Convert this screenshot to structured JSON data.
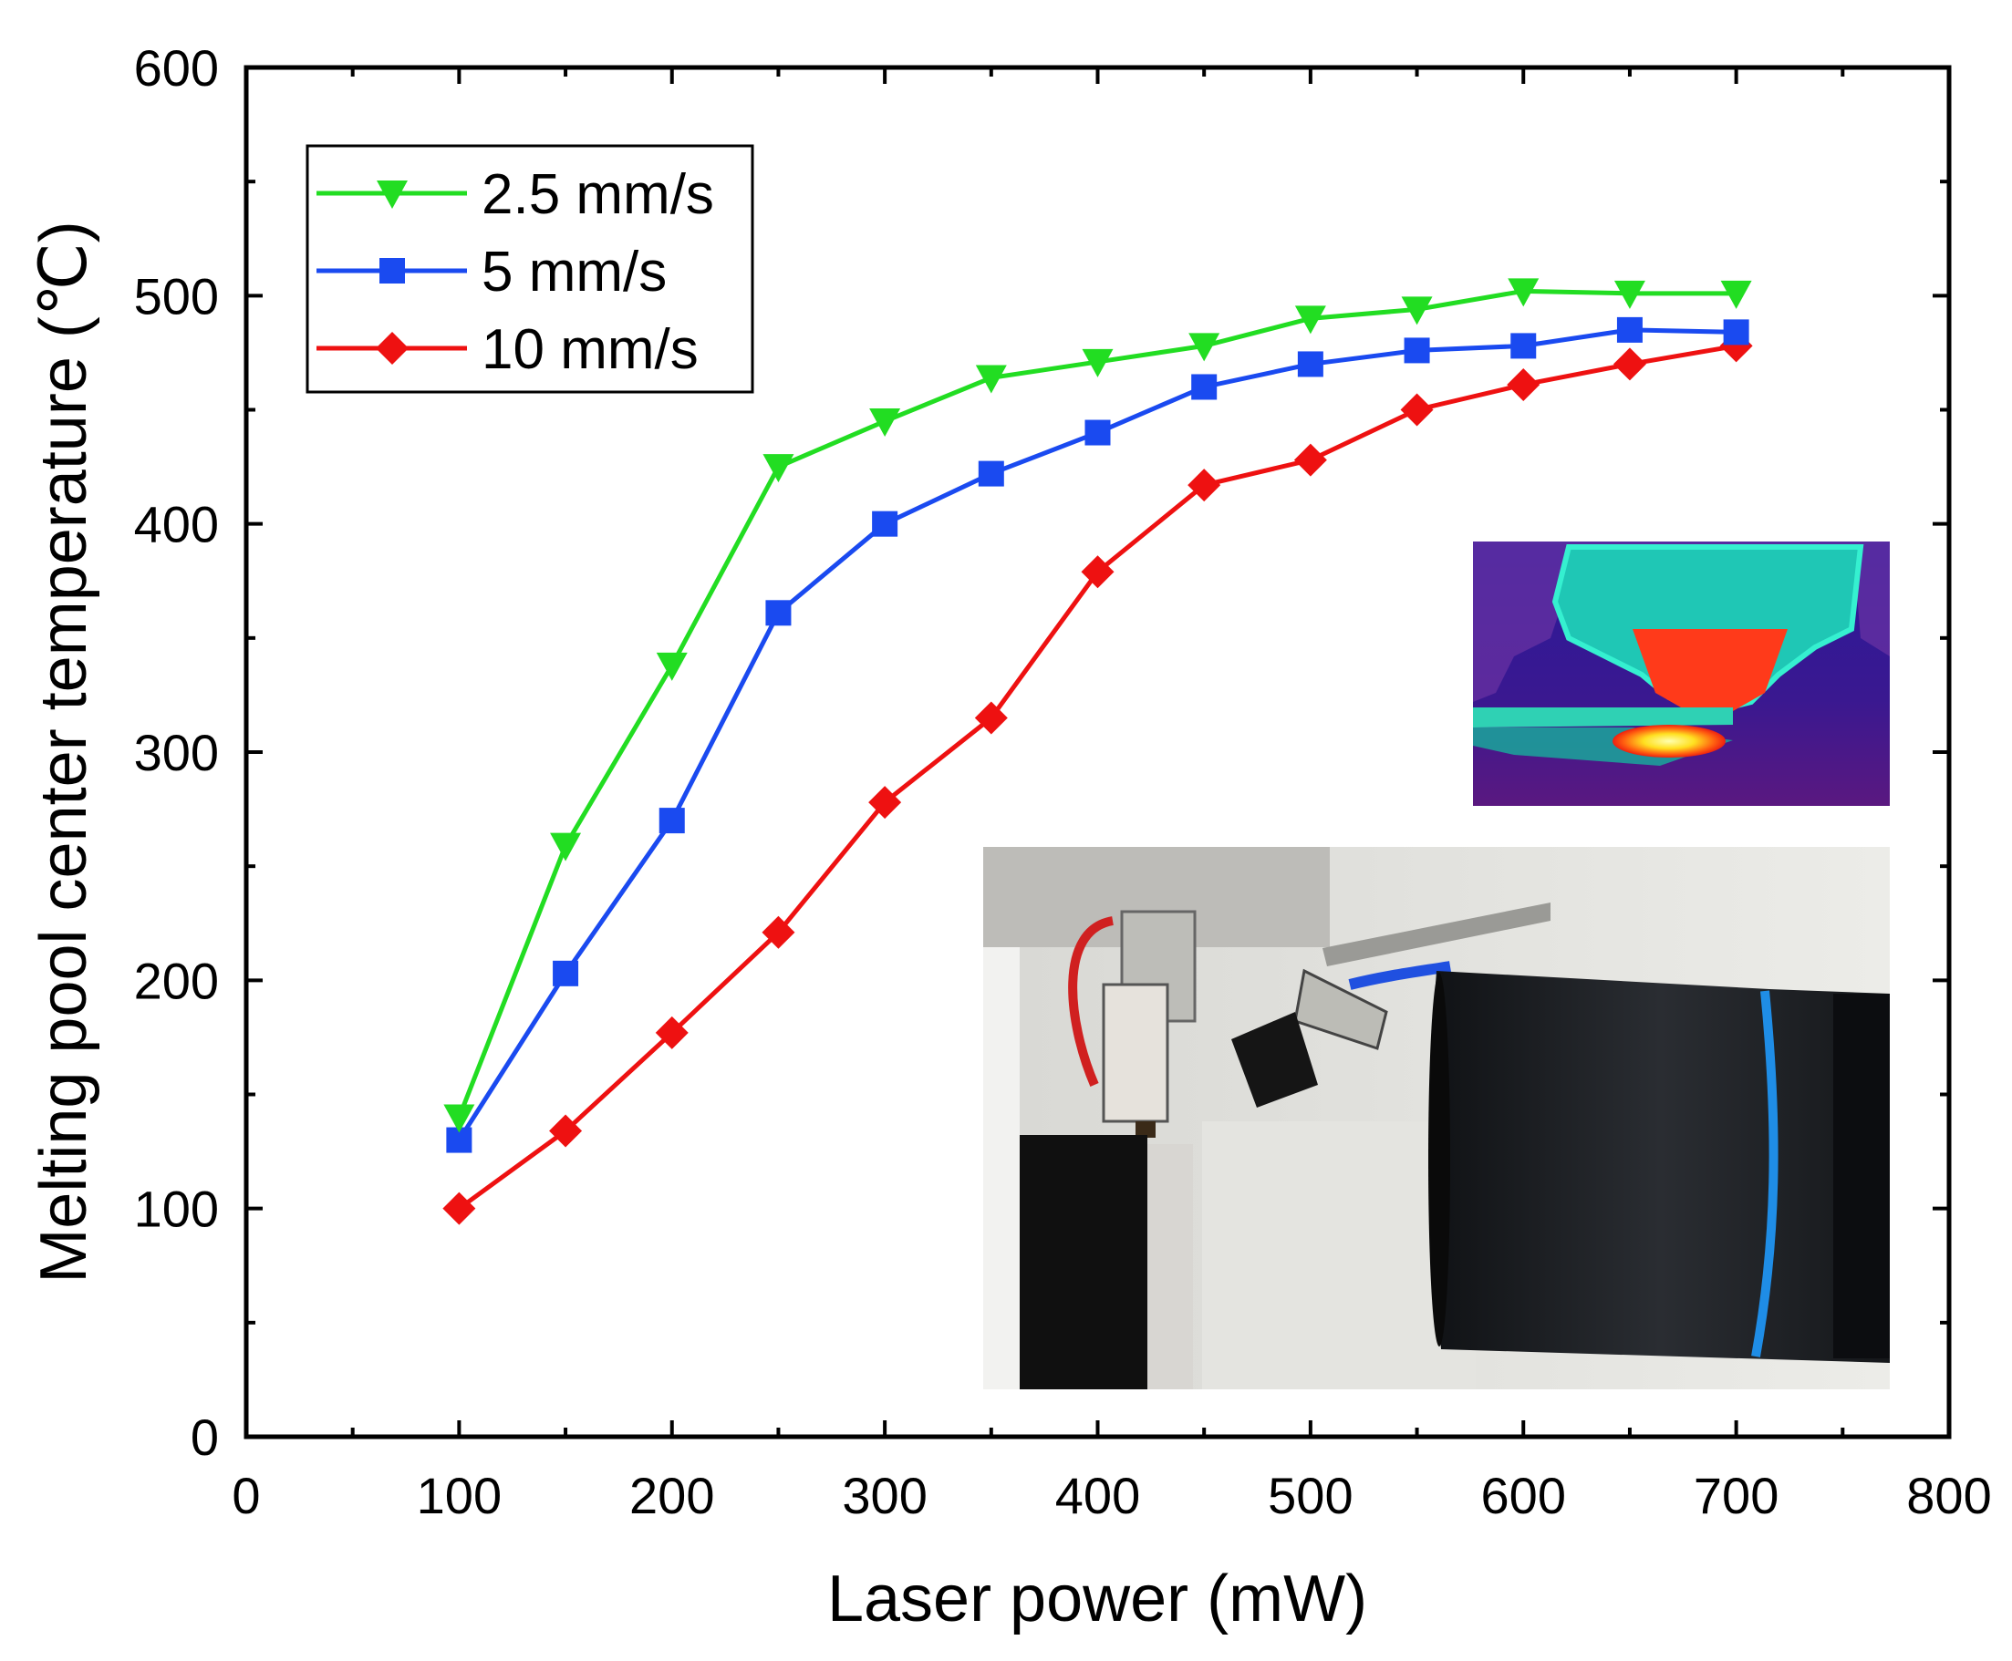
{
  "chart_data": {
    "type": "line",
    "xlabel": "Laser power (mW)",
    "ylabel": "Melting pool center temperature (℃)",
    "xlim": [
      0,
      800
    ],
    "ylim": [
      0,
      600
    ],
    "x_ticks": [
      "0",
      "100",
      "200",
      "300",
      "400",
      "500",
      "600",
      "700",
      "800"
    ],
    "y_ticks": [
      "0",
      "100",
      "200",
      "300",
      "400",
      "500",
      "600"
    ],
    "x": [
      100,
      150,
      200,
      250,
      300,
      350,
      400,
      450,
      500,
      550,
      600,
      650,
      700
    ],
    "grid": false,
    "legend_position": "top-left",
    "series": [
      {
        "name": "2.5 mm/s",
        "color": "#22dd22",
        "marker": "triangle-down",
        "values": [
          140,
          259,
          338,
          425,
          445,
          464,
          471,
          478,
          490,
          494,
          502,
          501,
          501
        ]
      },
      {
        "name": "5 mm/s",
        "color": "#1a4af0",
        "marker": "square",
        "values": [
          130,
          203,
          270,
          361,
          400,
          422,
          440,
          460,
          470,
          476,
          478,
          485,
          484
        ]
      },
      {
        "name": "10 mm/s",
        "color": "#ee1111",
        "marker": "diamond",
        "values": [
          100,
          134,
          177,
          221,
          278,
          315,
          379,
          417,
          428,
          450,
          461,
          470,
          478
        ]
      }
    ]
  }
}
